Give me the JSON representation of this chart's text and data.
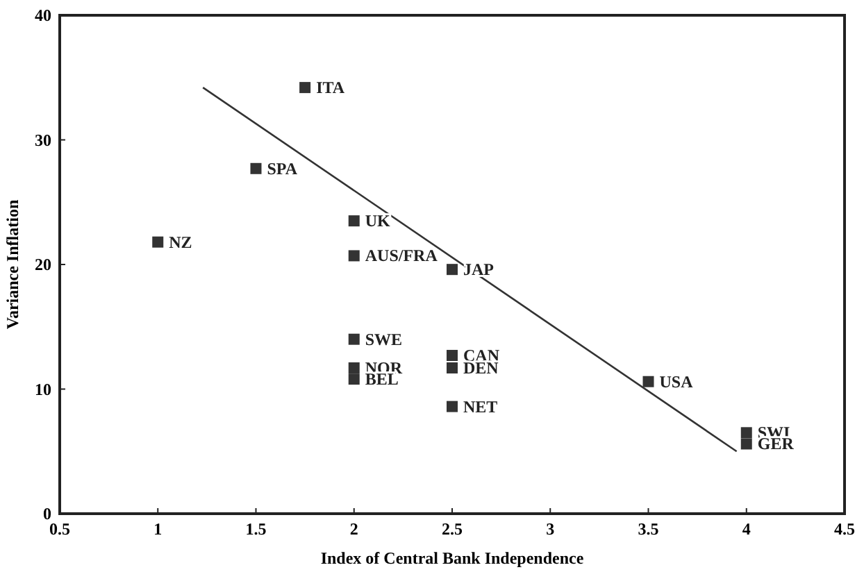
{
  "chart_data": {
    "type": "scatter",
    "xlabel": "Index of Central Bank Independence",
    "ylabel": "Variance Inflation",
    "xlim": [
      0.5,
      4.5
    ],
    "xticks": [
      0.5,
      1,
      1.5,
      2,
      2.5,
      3,
      3.5,
      4,
      4.5
    ],
    "ylim": [
      0,
      40
    ],
    "yticks": [
      0,
      10,
      20,
      30,
      40
    ],
    "marker": "square",
    "grid": false,
    "series": [
      {
        "color": "#333333",
        "x": [
          1,
          1.5,
          1.75,
          2,
          2,
          2,
          2,
          2,
          2.5,
          2.5,
          2.5,
          2.5,
          3.5,
          4,
          4
        ],
        "values": [
          21.8,
          27.7,
          34.2,
          23.5,
          20.7,
          14.0,
          11.7,
          10.8,
          19.6,
          12.7,
          11.7,
          8.6,
          10.6,
          6.5,
          5.6
        ]
      },
      {
        "type": "line",
        "marker": "none",
        "color": "#333333",
        "x": [
          1.23,
          3.95
        ],
        "values": [
          34.2,
          5.0
        ]
      }
    ],
    "annotations": [
      {
        "text": "NZ",
        "x": 1,
        "y": 21.8
      },
      {
        "text": "SPA",
        "x": 1.5,
        "y": 27.7
      },
      {
        "text": "ITA",
        "x": 1.75,
        "y": 34.2
      },
      {
        "text": "UK",
        "x": 2,
        "y": 23.5
      },
      {
        "text": "AUS/FRA",
        "x": 2,
        "y": 20.7
      },
      {
        "text": "SWE",
        "x": 2,
        "y": 14.0
      },
      {
        "text": "NOR",
        "x": 2,
        "y": 11.7
      },
      {
        "text": "BEL",
        "x": 2,
        "y": 10.8
      },
      {
        "text": "JAP",
        "x": 2.5,
        "y": 19.6
      },
      {
        "text": "CAN",
        "x": 2.5,
        "y": 12.7
      },
      {
        "text": "DEN",
        "x": 2.5,
        "y": 11.7
      },
      {
        "text": "NET",
        "x": 2.5,
        "y": 8.6
      },
      {
        "text": "USA",
        "x": 3.5,
        "y": 10.6
      },
      {
        "text": "SWI",
        "x": 4,
        "y": 6.5
      },
      {
        "text": "GER",
        "x": 4,
        "y": 5.6
      }
    ]
  }
}
